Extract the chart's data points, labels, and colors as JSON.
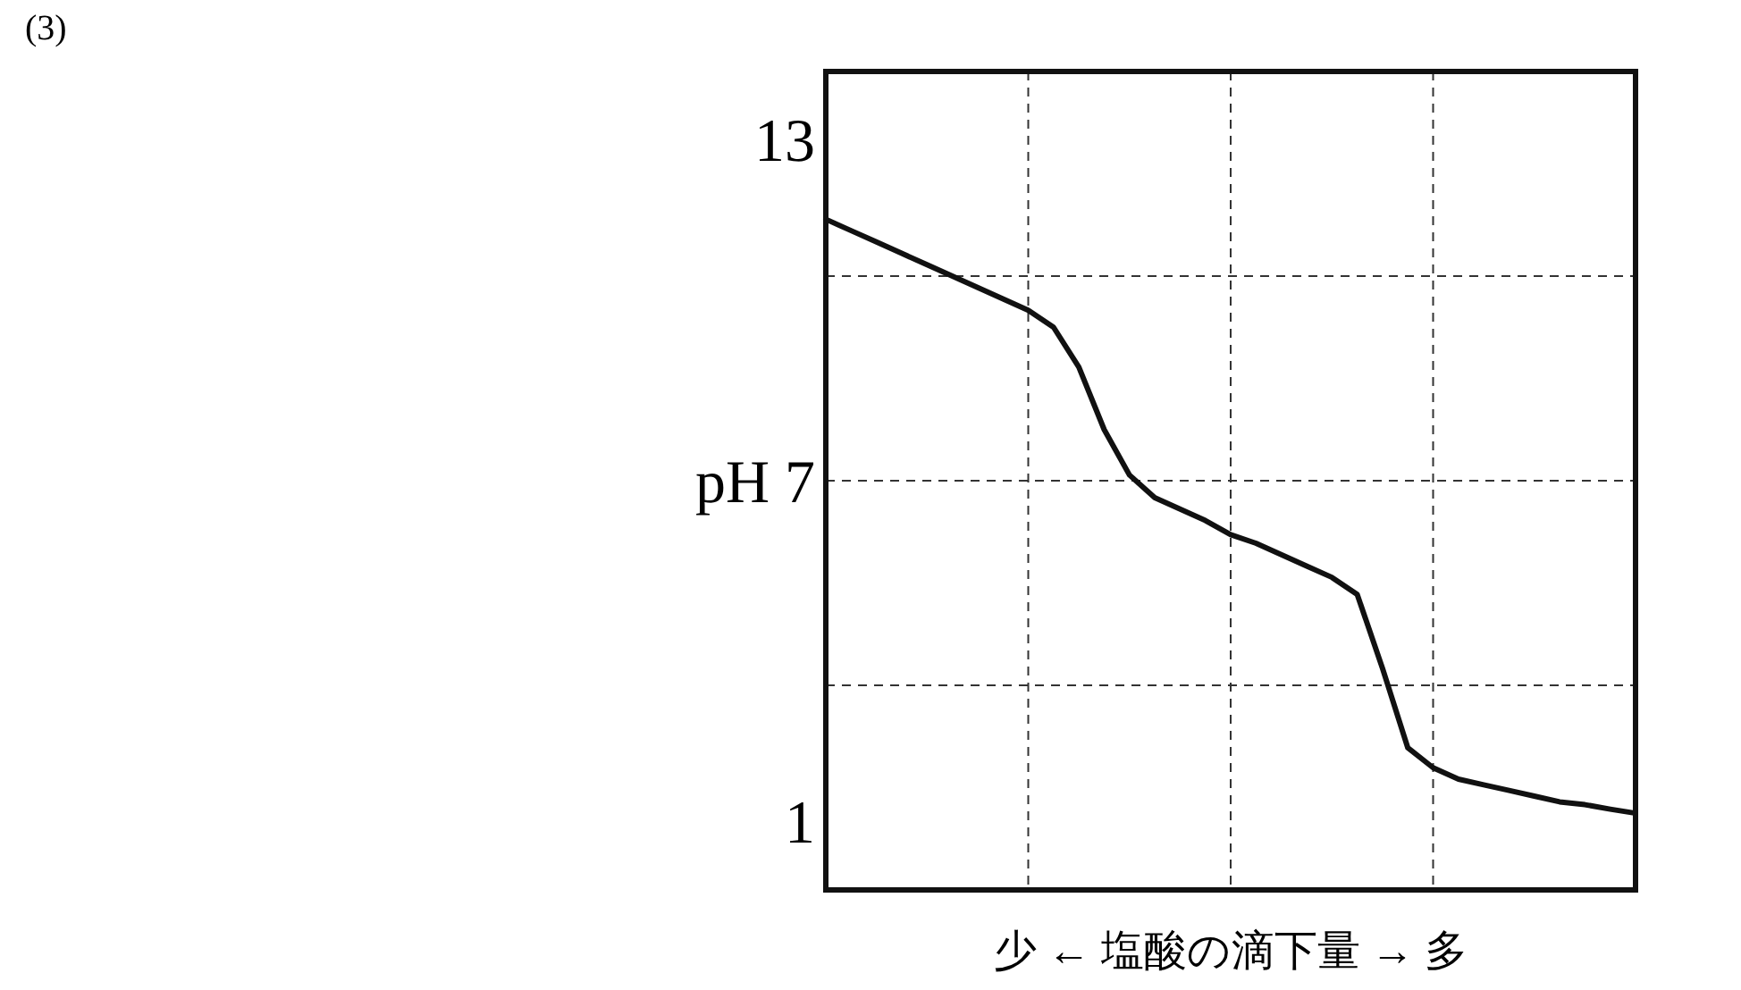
{
  "chart_data": {
    "type": "line",
    "xlabel": "少 ← 塩酸の滴下量 → 多",
    "annotations": [
      "(3)"
    ],
    "categories": [
      null,
      null,
      null,
      null,
      null,
      null,
      null,
      null,
      null,
      null,
      null,
      null,
      null,
      null,
      null,
      null,
      null,
      null,
      null,
      null,
      null,
      null,
      null,
      null,
      null,
      null,
      null,
      null,
      null,
      null,
      null,
      null,
      null
    ],
    "series": [
      {
        "color": "#111111",
        "values": [
          11.6,
          11.4,
          11.2,
          11.0,
          10.8,
          10.6,
          10.4,
          10.2,
          10.0,
          9.7,
          9.0,
          7.9,
          7.1,
          6.7,
          6.5,
          6.3,
          6.05,
          5.9,
          5.7,
          5.5,
          5.3,
          5.0,
          3.7,
          2.3,
          1.95,
          1.75,
          1.65,
          1.55,
          1.45,
          1.35,
          1.3,
          1.22,
          1.15
        ]
      }
    ],
    "ylim": [
      -0.2,
      14.2
    ],
    "yticks": [
      {
        "value": 1,
        "label": "1"
      },
      {
        "value": 3.4,
        "label": null
      },
      {
        "value": 7,
        "label": "pH 7"
      },
      {
        "value": 10.6,
        "label": null
      },
      {
        "value": 13,
        "label": "13"
      }
    ],
    "grid": true,
    "line_style": "solid",
    "marker": "none"
  }
}
